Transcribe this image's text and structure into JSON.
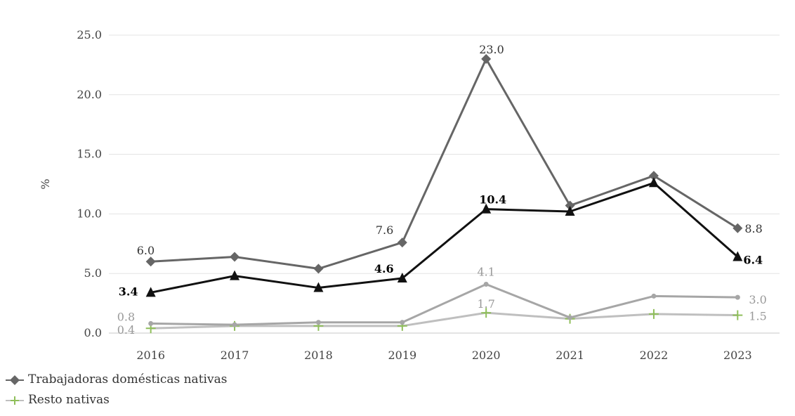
{
  "chart_data": {
    "type": "line",
    "title": "",
    "xlabel": "",
    "ylabel": "%",
    "ylim": [
      0,
      25
    ],
    "yticks": [
      "0.0",
      "5.0",
      "10.0",
      "15.0",
      "20.0",
      "25.0"
    ],
    "categories": [
      "2016",
      "2017",
      "2018",
      "2019",
      "2020",
      "2021",
      "2022",
      "2023"
    ],
    "grid": true,
    "legend_position": "bottom-left",
    "series": [
      {
        "name": "Trabajadoras domésticas nativas",
        "color": "#666666",
        "marker": "diamond",
        "values": [
          6.0,
          6.4,
          5.4,
          7.6,
          23.0,
          10.7,
          13.2,
          8.8
        ],
        "labels": [
          "6.0",
          "",
          "",
          "7.6",
          "23.0",
          "",
          "",
          "8.8"
        ]
      },
      {
        "name": "",
        "color": "#111111",
        "marker": "triangle",
        "values": [
          3.4,
          4.8,
          3.8,
          4.6,
          10.4,
          10.2,
          12.6,
          6.4
        ],
        "labels": [
          "3.4",
          "",
          "",
          "4.6",
          "10.4",
          "",
          "",
          "6.4"
        ]
      },
      {
        "name": "",
        "color": "#a6a6a6",
        "marker": "circle",
        "values": [
          0.8,
          0.7,
          0.9,
          0.9,
          4.1,
          1.3,
          3.1,
          3.0
        ],
        "labels": [
          "0.8",
          "",
          "",
          "",
          "4.1",
          "",
          "",
          "3.0"
        ]
      },
      {
        "name": "Resto nativas",
        "color": "#bfbfbf",
        "markerColor": "#8fbf5a",
        "marker": "plus",
        "values": [
          0.4,
          0.6,
          0.6,
          0.6,
          1.7,
          1.2,
          1.6,
          1.5
        ],
        "labels": [
          "0.4",
          "",
          "",
          "",
          "1.7",
          "",
          "",
          "1.5"
        ]
      }
    ]
  },
  "legend": {
    "items": [
      {
        "label": "Trabajadoras domésticas nativas",
        "marker": "diamond",
        "color": "#666666"
      },
      {
        "label": "Resto nativas",
        "marker": "plus",
        "color": "#8fbf5a"
      }
    ]
  }
}
